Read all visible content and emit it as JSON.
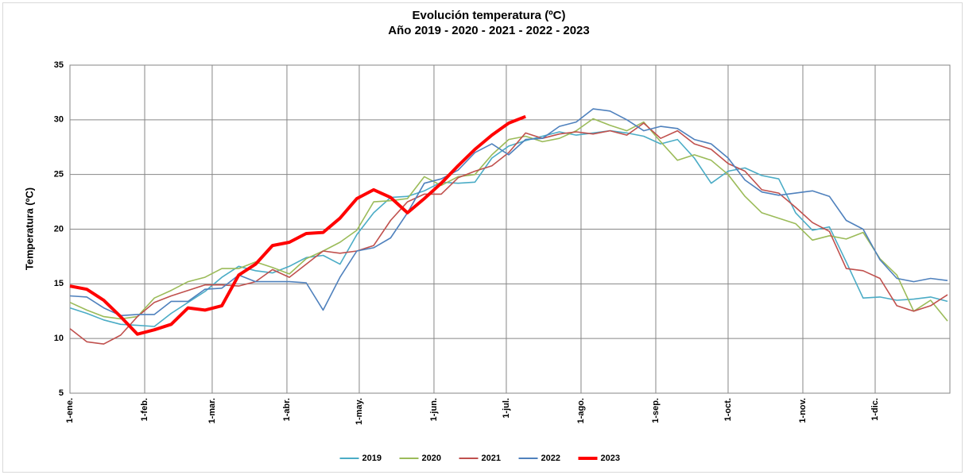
{
  "chart_data": {
    "type": "line",
    "title": "Evolución temperatura (ºC)",
    "subtitle": "Año 2019 - 2020 - 2021 - 2022 - 2023",
    "ylabel": "Temperatura (ºC)",
    "x": [
      0,
      7,
      14,
      21,
      28,
      35,
      42,
      49,
      56,
      63,
      70,
      77,
      84,
      91,
      98,
      105,
      112,
      119,
      126,
      133,
      140,
      147,
      154,
      161,
      168,
      175,
      182,
      189,
      196,
      203,
      210,
      217,
      224,
      231,
      238,
      245,
      252,
      259,
      266,
      273,
      280,
      287,
      294,
      301,
      308,
      315,
      322,
      329,
      336,
      343,
      350,
      357,
      364
    ],
    "xlim": [
      0,
      365
    ],
    "xticks": [
      {
        "value": 0,
        "label": "1-ene."
      },
      {
        "value": 31,
        "label": "1-feb."
      },
      {
        "value": 59,
        "label": "1-mar."
      },
      {
        "value": 90,
        "label": "1-abr."
      },
      {
        "value": 120,
        "label": "1-may."
      },
      {
        "value": 151,
        "label": "1-jun."
      },
      {
        "value": 181,
        "label": "1-jul."
      },
      {
        "value": 212,
        "label": "1-ago."
      },
      {
        "value": 243,
        "label": "1-sep."
      },
      {
        "value": 273,
        "label": "1-oct."
      },
      {
        "value": 304,
        "label": "1-nov."
      },
      {
        "value": 334,
        "label": "1-dic."
      }
    ],
    "ylim": [
      5,
      35
    ],
    "yticks": [
      5,
      10,
      15,
      20,
      25,
      30,
      35
    ],
    "grid": true,
    "legend": "bottom",
    "series": [
      {
        "name": "2019",
        "color": "#4bacc6",
        "values": [
          12.8,
          12.3,
          11.7,
          11.3,
          11.2,
          11.1,
          12.3,
          13.3,
          14.3,
          15.6,
          16.6,
          16.2,
          16.0,
          16.6,
          17.4,
          17.6,
          16.8,
          19.5,
          21.5,
          22.9,
          23.0,
          23.5,
          24.3,
          24.2,
          24.3,
          26.5,
          27.6,
          28.1,
          28.5,
          28.9,
          28.6,
          28.8,
          29.0,
          28.8,
          28.5,
          27.8,
          28.2,
          26.5,
          24.2,
          25.3,
          25.6,
          24.9,
          24.6,
          21.5,
          19.9,
          20.2,
          17.0,
          13.7,
          13.8,
          13.5,
          13.6,
          13.8,
          13.4
        ]
      },
      {
        "name": "2020",
        "color": "#9bbb59",
        "values": [
          13.3,
          12.6,
          12.0,
          11.8,
          12.0,
          13.7,
          14.4,
          15.2,
          15.6,
          16.4,
          16.4,
          17.0,
          16.5,
          15.9,
          17.3,
          18.0,
          18.8,
          19.9,
          22.5,
          22.6,
          22.8,
          24.8,
          24.0,
          24.8,
          25.0,
          26.8,
          28.2,
          28.5,
          28.0,
          28.3,
          29.0,
          30.1,
          29.5,
          29.0,
          29.8,
          28.0,
          26.3,
          26.8,
          26.3,
          25.0,
          23.0,
          21.5,
          21.0,
          20.5,
          19.0,
          19.4,
          19.1,
          19.7,
          17.3,
          15.8,
          12.5,
          13.5,
          11.6
        ]
      },
      {
        "name": "2021",
        "color": "#c0504d",
        "values": [
          10.9,
          9.7,
          9.5,
          10.3,
          12.0,
          13.3,
          13.9,
          14.4,
          14.9,
          14.9,
          14.8,
          15.2,
          16.3,
          15.6,
          16.8,
          18.0,
          17.8,
          18.0,
          18.5,
          20.8,
          22.5,
          23.2,
          23.2,
          24.7,
          25.3,
          25.8,
          27.0,
          28.8,
          28.3,
          28.7,
          28.9,
          28.7,
          29.0,
          28.6,
          29.7,
          28.3,
          29.0,
          27.8,
          27.3,
          26.0,
          25.3,
          23.6,
          23.3,
          22.0,
          20.6,
          19.8,
          16.4,
          16.2,
          15.5,
          13.0,
          12.5,
          13.0,
          14.0
        ]
      },
      {
        "name": "2022",
        "color": "#4f81bd",
        "values": [
          13.9,
          13.8,
          12.8,
          12.1,
          12.2,
          12.2,
          13.4,
          13.4,
          14.5,
          14.6,
          15.8,
          15.2,
          15.2,
          15.2,
          15.1,
          12.6,
          15.6,
          18.0,
          18.3,
          19.2,
          21.5,
          24.2,
          24.6,
          25.4,
          27.0,
          27.8,
          26.8,
          28.2,
          28.3,
          29.4,
          29.8,
          31.0,
          30.8,
          30.0,
          29.0,
          29.4,
          29.2,
          28.2,
          27.8,
          26.5,
          24.5,
          23.4,
          23.1,
          23.3,
          23.5,
          23.0,
          20.8,
          20.0,
          17.2,
          15.5,
          15.2,
          15.5,
          15.3
        ]
      },
      {
        "name": "2023",
        "color": "#ff0000",
        "values": [
          14.8,
          14.5,
          13.5,
          12.0,
          10.4,
          10.8,
          11.3,
          12.8,
          12.6,
          13.0,
          15.8,
          16.8,
          18.5,
          18.8,
          19.6,
          19.7,
          21.0,
          22.8,
          23.6,
          22.9,
          21.5,
          22.8,
          24.2,
          25.8,
          27.3,
          28.6,
          29.7,
          30.3,
          null,
          null,
          null,
          null,
          null,
          null,
          null,
          null,
          null,
          null,
          null,
          null,
          null,
          null,
          null,
          null,
          null,
          null,
          null,
          null,
          null,
          null,
          null,
          null,
          null
        ]
      }
    ]
  }
}
